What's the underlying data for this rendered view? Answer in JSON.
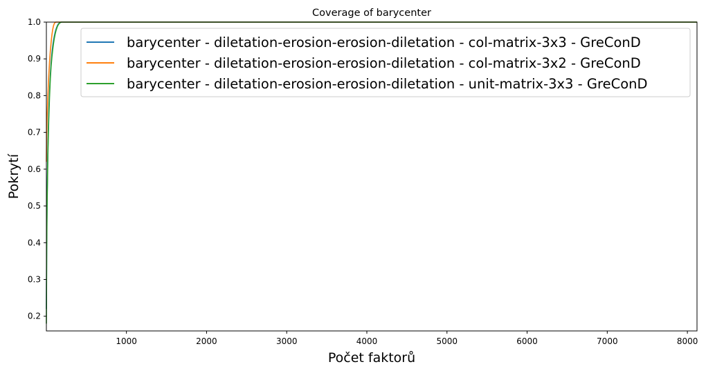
{
  "chart_data": {
    "type": "line",
    "title": "Coverage of barycenter",
    "xlabel": "Počet faktorů",
    "ylabel": "Pokrytí",
    "xlim": [
      1,
      8120
    ],
    "ylim": [
      0.16,
      1.0
    ],
    "xticks": [
      1000,
      2000,
      3000,
      4000,
      5000,
      6000,
      7000,
      8000
    ],
    "yticks": [
      0.2,
      0.3,
      0.4,
      0.5,
      0.6,
      0.7,
      0.8,
      0.9,
      1.0
    ],
    "ytick_labels": [
      "0.2",
      "0.3",
      "0.4",
      "0.5",
      "0.6",
      "0.7",
      "0.8",
      "0.9",
      "1.0"
    ],
    "grid": false,
    "legend_position": "top-right",
    "series": [
      {
        "name": "barycenter - diletation-erosion-erosion-diletation - col-matrix-3x3 - GreConD",
        "color": "#1f77b4",
        "x": [
          1,
          5,
          10,
          20,
          30,
          40,
          50,
          60,
          70,
          80,
          90,
          100,
          110,
          120,
          130,
          140,
          150,
          160,
          170,
          180,
          190,
          8120
        ],
        "y": [
          0.22,
          0.4,
          0.52,
          0.66,
          0.75,
          0.81,
          0.855,
          0.89,
          0.915,
          0.935,
          0.95,
          0.962,
          0.972,
          0.98,
          0.986,
          0.991,
          0.995,
          0.997,
          0.999,
          1.0,
          1.0,
          1.0
        ]
      },
      {
        "name": "barycenter - diletation-erosion-erosion-diletation - col-matrix-3x2 - GreConD",
        "color": "#ff7f0e",
        "x": [
          1,
          5,
          10,
          20,
          30,
          40,
          50,
          60,
          70,
          80,
          90,
          100,
          110,
          120,
          130,
          8120
        ],
        "y": [
          0.62,
          0.69,
          0.74,
          0.8,
          0.85,
          0.89,
          0.92,
          0.945,
          0.965,
          0.98,
          0.99,
          0.996,
          0.999,
          1.0,
          1.0,
          1.0
        ]
      },
      {
        "name": "barycenter - diletation-erosion-erosion-diletation - unit-matrix-3x3 - GreConD",
        "color": "#2ca02c",
        "x": [
          1,
          5,
          10,
          20,
          30,
          40,
          50,
          60,
          70,
          80,
          90,
          100,
          110,
          120,
          130,
          140,
          150,
          160,
          170,
          180,
          190,
          200,
          8120
        ],
        "y": [
          0.18,
          0.38,
          0.5,
          0.64,
          0.73,
          0.795,
          0.845,
          0.88,
          0.905,
          0.925,
          0.942,
          0.956,
          0.967,
          0.976,
          0.983,
          0.989,
          0.993,
          0.996,
          0.998,
          0.999,
          1.0,
          1.0,
          1.0
        ]
      }
    ]
  }
}
